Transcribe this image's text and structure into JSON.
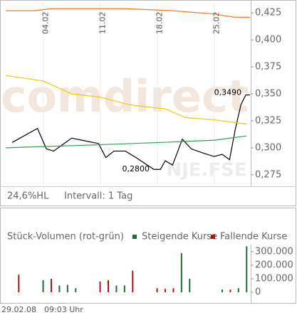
{
  "chart_data": [
    {
      "type": "line",
      "watermark": "comdirect",
      "symbol": "NJE.FSE",
      "info": [
        "24,6%HL",
        "Intervall: 1 Tag"
      ],
      "xlim": [
        -0.6,
        29.5
      ],
      "xticks": [
        {
          "value": 4,
          "label": "04.02"
        },
        {
          "value": 11,
          "label": "11.02"
        },
        {
          "value": 18,
          "label": "18.02"
        },
        {
          "value": 25,
          "label": "25.02"
        }
      ],
      "ylim": [
        0.265,
        0.435
      ],
      "yticks": [
        {
          "value": 0.275,
          "label": "0,275"
        },
        {
          "value": 0.3,
          "label": "0,300"
        },
        {
          "value": 0.325,
          "label": "0,325"
        },
        {
          "value": 0.35,
          "label": "0,350"
        },
        {
          "value": 0.375,
          "label": "0,375"
        },
        {
          "value": 0.4,
          "label": "0,400"
        },
        {
          "value": 0.425,
          "label": "0,425"
        }
      ],
      "grid": true,
      "series": [
        {
          "color": "#000000",
          "x": [
            0.2,
            3.3,
            4.4,
            5.3,
            6.2,
            7.5,
            8.8,
            10.1,
            10.8,
            11.7,
            12.7,
            14.1,
            15.4,
            17.6,
            18.4,
            19.0,
            19.9,
            21.1,
            22.2,
            23.7,
            25.0,
            26.0,
            26.9,
            27.6,
            28.3,
            28.9,
            29.4
          ],
          "values": [
            0.305,
            0.318,
            0.299,
            0.297,
            0.302,
            0.309,
            0.307,
            0.305,
            0.304,
            0.291,
            0.297,
            0.297,
            0.291,
            0.28,
            0.28,
            0.288,
            0.284,
            0.308,
            0.299,
            0.295,
            0.292,
            0.294,
            0.289,
            0.317,
            0.34,
            0.349,
            0.349
          ]
        },
        {
          "color": "#f07820",
          "x": [
            -0.6,
            3,
            5,
            14,
            20,
            25,
            27.5,
            29.4
          ],
          "values": [
            0.427,
            0.427,
            0.429,
            0.429,
            0.427,
            0.424,
            0.421,
            0.421
          ]
        },
        {
          "color": "#f0c800",
          "x": [
            -0.6,
            4,
            7.5,
            11,
            14.5,
            19,
            21.5,
            25,
            29
          ],
          "values": [
            0.367,
            0.362,
            0.35,
            0.347,
            0.34,
            0.336,
            0.328,
            0.326,
            0.322
          ]
        },
        {
          "color": "#30a050",
          "x": [
            -0.6,
            11.5,
            18.5,
            25,
            29
          ],
          "values": [
            0.3,
            0.303,
            0.305,
            0.307,
            0.311
          ]
        }
      ],
      "annotations": [
        {
          "value": 0.349,
          "label": "0,3490"
        },
        {
          "value": 0.28,
          "label": "0,2800"
        }
      ]
    },
    {
      "type": "bar",
      "title": "Stück-Volumen (rot-grün)",
      "xlim": [
        -0.6,
        29.5
      ],
      "ylim": [
        0,
        350000
      ],
      "yticks": [
        0,
        {
          "value": 100000,
          "label": "100.000"
        },
        {
          "value": 200000,
          "label": "200.000"
        },
        {
          "value": 300000,
          "label": "300.000"
        }
      ],
      "series": [
        {
          "name": "Steigende Kurse",
          "color": "#1a6e3a",
          "x": [
            4,
            6,
            7,
            8,
            13,
            14,
            21,
            22,
            26,
            28,
            29
          ],
          "values": [
            90000,
            50000,
            55000,
            30000,
            50000,
            50000,
            290000,
            100000,
            20000,
            30000,
            340000
          ]
        },
        {
          "name": "Fallende Kurse",
          "color": "#b01818",
          "x": [
            1,
            5,
            11,
            12,
            15,
            18,
            19,
            20,
            27
          ],
          "values": [
            130000,
            100000,
            80000,
            90000,
            160000,
            30000,
            25000,
            30000,
            20000
          ]
        }
      ]
    }
  ],
  "footer": {
    "date": "29.02.08",
    "time": "09:03 Uhr"
  }
}
